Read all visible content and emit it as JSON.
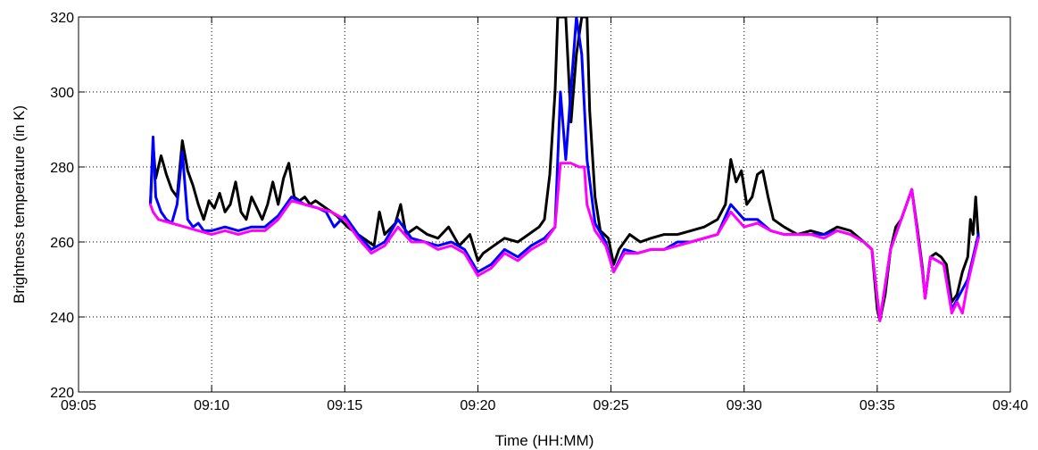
{
  "chart_data": {
    "type": "line",
    "title": "",
    "xlabel": "Time (HH:MM)",
    "ylabel": "Brightness temperature (in K)",
    "xlim": [
      "09:05",
      "09:40"
    ],
    "ylim": [
      220,
      320
    ],
    "x_ticks": [
      "09:05",
      "09:10",
      "09:15",
      "09:20",
      "09:25",
      "09:30",
      "09:35",
      "09:40"
    ],
    "y_ticks": [
      220,
      240,
      260,
      280,
      300,
      320
    ],
    "grid": true,
    "legend": "none",
    "series": [
      {
        "color": "#000000",
        "points": [
          [
            "09:07:42",
            270
          ],
          [
            "09:07:48",
            286
          ],
          [
            "09:07:54",
            277
          ],
          [
            "09:08:06",
            283
          ],
          [
            "09:08:18",
            278
          ],
          [
            "09:08:30",
            274
          ],
          [
            "09:08:42",
            272
          ],
          [
            "09:08:54",
            287
          ],
          [
            "09:09:06",
            279
          ],
          [
            "09:09:18",
            275
          ],
          [
            "09:09:30",
            270
          ],
          [
            "09:09:42",
            266
          ],
          [
            "09:09:54",
            271
          ],
          [
            "09:10:06",
            269
          ],
          [
            "09:10:18",
            273
          ],
          [
            "09:10:30",
            268
          ],
          [
            "09:10:42",
            270
          ],
          [
            "09:10:54",
            276
          ],
          [
            "09:11:06",
            268
          ],
          [
            "09:11:18",
            266
          ],
          [
            "09:11:30",
            272
          ],
          [
            "09:11:42",
            269
          ],
          [
            "09:11:54",
            266
          ],
          [
            "09:12:06",
            270
          ],
          [
            "09:12:18",
            276
          ],
          [
            "09:12:30",
            270
          ],
          [
            "09:12:42",
            277
          ],
          [
            "09:12:54",
            281
          ],
          [
            "09:13:06",
            272
          ],
          [
            "09:13:18",
            271
          ],
          [
            "09:13:30",
            272
          ],
          [
            "09:13:42",
            270
          ],
          [
            "09:13:54",
            271
          ],
          [
            "09:14:06",
            270
          ],
          [
            "09:14:18",
            269
          ],
          [
            "09:14:30",
            268
          ],
          [
            "09:14:42",
            267
          ],
          [
            "09:15:06",
            264
          ],
          [
            "09:15:30",
            262
          ],
          [
            "09:15:54",
            260
          ],
          [
            "09:16:06",
            259
          ],
          [
            "09:16:18",
            268
          ],
          [
            "09:16:30",
            262
          ],
          [
            "09:16:54",
            265
          ],
          [
            "09:17:06",
            270
          ],
          [
            "09:17:18",
            262
          ],
          [
            "09:17:42",
            264
          ],
          [
            "09:18:06",
            262
          ],
          [
            "09:18:30",
            261
          ],
          [
            "09:18:54",
            264
          ],
          [
            "09:19:18",
            259
          ],
          [
            "09:19:42",
            262
          ],
          [
            "09:20:00",
            255
          ],
          [
            "09:20:12",
            257
          ],
          [
            "09:20:36",
            259
          ],
          [
            "09:21:00",
            261
          ],
          [
            "09:21:30",
            260
          ],
          [
            "09:21:54",
            262
          ],
          [
            "09:22:18",
            264
          ],
          [
            "09:22:30",
            266
          ],
          [
            "09:22:42",
            278
          ],
          [
            "09:22:54",
            300
          ],
          [
            "09:23:00",
            320
          ],
          [
            "09:23:06",
            320
          ],
          [
            "09:23:18",
            320
          ],
          [
            "09:23:30",
            292
          ],
          [
            "09:23:42",
            310
          ],
          [
            "09:23:54",
            320
          ],
          [
            "09:24:06",
            320
          ],
          [
            "09:24:12",
            295
          ],
          [
            "09:24:24",
            272
          ],
          [
            "09:24:36",
            263
          ],
          [
            "09:24:54",
            261
          ],
          [
            "09:25:06",
            254
          ],
          [
            "09:25:18",
            258
          ],
          [
            "09:25:42",
            262
          ],
          [
            "09:26:06",
            260
          ],
          [
            "09:26:30",
            261
          ],
          [
            "09:27:00",
            262
          ],
          [
            "09:27:30",
            262
          ],
          [
            "09:28:00",
            263
          ],
          [
            "09:28:30",
            264
          ],
          [
            "09:29:00",
            266
          ],
          [
            "09:29:18",
            270
          ],
          [
            "09:29:30",
            282
          ],
          [
            "09:29:42",
            276
          ],
          [
            "09:29:54",
            279
          ],
          [
            "09:30:06",
            270
          ],
          [
            "09:30:18",
            272
          ],
          [
            "09:30:30",
            278
          ],
          [
            "09:30:42",
            279
          ],
          [
            "09:30:54",
            272
          ],
          [
            "09:31:06",
            266
          ],
          [
            "09:31:30",
            264
          ],
          [
            "09:32:00",
            262
          ],
          [
            "09:32:30",
            263
          ],
          [
            "09:33:00",
            262
          ],
          [
            "09:33:30",
            264
          ],
          [
            "09:34:00",
            263
          ],
          [
            "09:34:30",
            260
          ],
          [
            "09:34:48",
            258
          ],
          [
            "09:35:00",
            242
          ],
          [
            "09:35:06",
            239
          ],
          [
            "09:35:18",
            246
          ],
          [
            "09:35:30",
            258
          ],
          [
            "09:35:42",
            264
          ],
          [
            "09:35:54",
            266
          ],
          [
            "09:36:06",
            270
          ],
          [
            "09:36:18",
            274
          ],
          [
            "09:36:30",
            264
          ],
          [
            "09:36:42",
            253
          ],
          [
            "09:36:48",
            245
          ],
          [
            "09:37:00",
            256
          ],
          [
            "09:37:12",
            257
          ],
          [
            "09:37:24",
            256
          ],
          [
            "09:37:36",
            254
          ],
          [
            "09:37:48",
            244
          ],
          [
            "09:38:00",
            246
          ],
          [
            "09:38:12",
            252
          ],
          [
            "09:38:24",
            256
          ],
          [
            "09:38:30",
            266
          ],
          [
            "09:38:36",
            262
          ],
          [
            "09:38:42",
            272
          ],
          [
            "09:38:48",
            261
          ]
        ]
      },
      {
        "color": "#0000ff",
        "points": [
          [
            "09:07:42",
            270
          ],
          [
            "09:07:48",
            288
          ],
          [
            "09:07:54",
            272
          ],
          [
            "09:08:06",
            268
          ],
          [
            "09:08:18",
            266
          ],
          [
            "09:08:30",
            265
          ],
          [
            "09:08:42",
            270
          ],
          [
            "09:08:54",
            284
          ],
          [
            "09:09:06",
            266
          ],
          [
            "09:09:18",
            264
          ],
          [
            "09:09:30",
            265
          ],
          [
            "09:09:42",
            263
          ],
          [
            "09:10:00",
            263
          ],
          [
            "09:10:30",
            264
          ],
          [
            "09:11:00",
            263
          ],
          [
            "09:11:30",
            264
          ],
          [
            "09:12:00",
            264
          ],
          [
            "09:12:30",
            267
          ],
          [
            "09:13:00",
            272
          ],
          [
            "09:13:30",
            270
          ],
          [
            "09:14:00",
            269
          ],
          [
            "09:14:18",
            268
          ],
          [
            "09:14:36",
            264
          ],
          [
            "09:15:00",
            267
          ],
          [
            "09:15:30",
            262
          ],
          [
            "09:16:00",
            258
          ],
          [
            "09:16:30",
            260
          ],
          [
            "09:17:00",
            266
          ],
          [
            "09:17:30",
            261
          ],
          [
            "09:18:00",
            260
          ],
          [
            "09:18:30",
            259
          ],
          [
            "09:19:00",
            260
          ],
          [
            "09:19:30",
            258
          ],
          [
            "09:20:00",
            252
          ],
          [
            "09:20:30",
            254
          ],
          [
            "09:21:00",
            258
          ],
          [
            "09:21:30",
            256
          ],
          [
            "09:22:00",
            259
          ],
          [
            "09:22:30",
            261
          ],
          [
            "09:22:54",
            264
          ],
          [
            "09:23:06",
            300
          ],
          [
            "09:23:18",
            282
          ],
          [
            "09:23:42",
            320
          ],
          [
            "09:23:54",
            310
          ],
          [
            "09:24:06",
            282
          ],
          [
            "09:24:24",
            265
          ],
          [
            "09:24:48",
            260
          ],
          [
            "09:25:06",
            252
          ],
          [
            "09:25:30",
            258
          ],
          [
            "09:26:00",
            257
          ],
          [
            "09:26:30",
            258
          ],
          [
            "09:27:00",
            258
          ],
          [
            "09:27:30",
            260
          ],
          [
            "09:28:00",
            260
          ],
          [
            "09:28:30",
            261
          ],
          [
            "09:29:00",
            262
          ],
          [
            "09:29:30",
            270
          ],
          [
            "09:30:00",
            266
          ],
          [
            "09:30:30",
            266
          ],
          [
            "09:31:00",
            263
          ],
          [
            "09:31:30",
            262
          ],
          [
            "09:32:00",
            262
          ],
          [
            "09:32:30",
            262
          ],
          [
            "09:33:00",
            262
          ],
          [
            "09:33:30",
            263
          ],
          [
            "09:34:00",
            262
          ],
          [
            "09:34:30",
            260
          ],
          [
            "09:34:48",
            258
          ],
          [
            "09:35:06",
            239
          ],
          [
            "09:35:30",
            258
          ],
          [
            "09:36:00",
            268
          ],
          [
            "09:36:18",
            274
          ],
          [
            "09:36:42",
            252
          ],
          [
            "09:36:48",
            245
          ],
          [
            "09:37:00",
            256
          ],
          [
            "09:37:30",
            254
          ],
          [
            "09:37:48",
            242
          ],
          [
            "09:38:06",
            246
          ],
          [
            "09:38:24",
            250
          ],
          [
            "09:38:48",
            262
          ]
        ]
      },
      {
        "color": "#ff00ff",
        "points": [
          [
            "09:07:42",
            270
          ],
          [
            "09:07:48",
            268
          ],
          [
            "09:08:00",
            266
          ],
          [
            "09:08:30",
            265
          ],
          [
            "09:09:00",
            264
          ],
          [
            "09:09:30",
            263
          ],
          [
            "09:10:00",
            262
          ],
          [
            "09:10:30",
            263
          ],
          [
            "09:11:00",
            262
          ],
          [
            "09:11:30",
            263
          ],
          [
            "09:12:00",
            263
          ],
          [
            "09:12:30",
            266
          ],
          [
            "09:13:00",
            271
          ],
          [
            "09:13:30",
            270
          ],
          [
            "09:14:00",
            269
          ],
          [
            "09:14:30",
            268
          ],
          [
            "09:15:00",
            266
          ],
          [
            "09:15:30",
            261
          ],
          [
            "09:16:00",
            257
          ],
          [
            "09:16:30",
            259
          ],
          [
            "09:17:00",
            264
          ],
          [
            "09:17:30",
            260
          ],
          [
            "09:18:00",
            260
          ],
          [
            "09:18:30",
            258
          ],
          [
            "09:19:00",
            259
          ],
          [
            "09:19:30",
            257
          ],
          [
            "09:20:00",
            251
          ],
          [
            "09:20:30",
            253
          ],
          [
            "09:21:00",
            257
          ],
          [
            "09:21:30",
            255
          ],
          [
            "09:22:00",
            258
          ],
          [
            "09:22:30",
            260
          ],
          [
            "09:22:54",
            264
          ],
          [
            "09:23:06",
            281
          ],
          [
            "09:23:30",
            281
          ],
          [
            "09:23:48",
            280
          ],
          [
            "09:24:00",
            280
          ],
          [
            "09:24:06",
            270
          ],
          [
            "09:24:24",
            263
          ],
          [
            "09:24:48",
            259
          ],
          [
            "09:25:06",
            252
          ],
          [
            "09:25:30",
            257
          ],
          [
            "09:26:00",
            257
          ],
          [
            "09:26:30",
            258
          ],
          [
            "09:27:00",
            258
          ],
          [
            "09:27:30",
            259
          ],
          [
            "09:28:00",
            260
          ],
          [
            "09:28:30",
            261
          ],
          [
            "09:29:00",
            262
          ],
          [
            "09:29:30",
            268
          ],
          [
            "09:30:00",
            264
          ],
          [
            "09:30:30",
            265
          ],
          [
            "09:31:00",
            263
          ],
          [
            "09:31:30",
            262
          ],
          [
            "09:32:00",
            262
          ],
          [
            "09:32:30",
            262
          ],
          [
            "09:33:00",
            261
          ],
          [
            "09:33:30",
            263
          ],
          [
            "09:34:00",
            262
          ],
          [
            "09:34:30",
            260
          ],
          [
            "09:34:48",
            258
          ],
          [
            "09:35:06",
            239
          ],
          [
            "09:35:30",
            258
          ],
          [
            "09:36:00",
            268
          ],
          [
            "09:36:18",
            274
          ],
          [
            "09:36:42",
            252
          ],
          [
            "09:36:48",
            245
          ],
          [
            "09:37:00",
            256
          ],
          [
            "09:37:30",
            254
          ],
          [
            "09:37:48",
            241
          ],
          [
            "09:38:00",
            244
          ],
          [
            "09:38:12",
            241
          ],
          [
            "09:38:24",
            249
          ],
          [
            "09:38:48",
            261
          ]
        ]
      }
    ]
  }
}
